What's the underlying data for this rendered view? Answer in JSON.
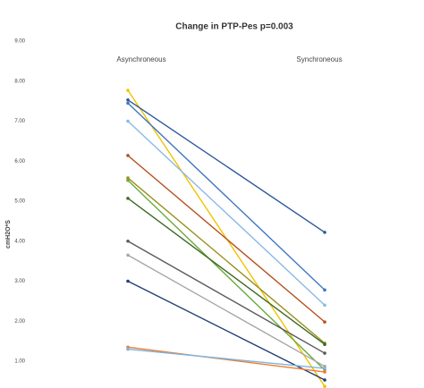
{
  "chart_data": {
    "type": "slope",
    "title": "Change in PTP-Pes    p=0.003",
    "y_label": "cmH2O*S",
    "categories": [
      "Asynchroneous",
      "Synchroneous"
    ],
    "ylim": [
      0,
      9
    ],
    "yticks": [
      {
        "value": 1,
        "label": "1.00"
      },
      {
        "value": 2,
        "label": "2.00"
      },
      {
        "value": 3,
        "label": "3.00"
      },
      {
        "value": 4,
        "label": "4.00"
      },
      {
        "value": 5,
        "label": "5.00"
      },
      {
        "value": 6,
        "label": "6.00"
      },
      {
        "value": 7,
        "label": "7.00"
      },
      {
        "value": 8,
        "label": "8.00"
      },
      {
        "value": 9,
        "label": "9.00"
      }
    ],
    "series": [
      {
        "color": "#f2c200",
        "values": [
          7.77,
          0.37
        ]
      },
      {
        "color": "#2e5a9c",
        "values": [
          7.53,
          4.22
        ]
      },
      {
        "color": "#3f78c0",
        "values": [
          7.45,
          2.78
        ]
      },
      {
        "color": "#8ab8e6",
        "values": [
          7.0,
          2.4
        ]
      },
      {
        "color": "#b5501c",
        "values": [
          6.14,
          1.98
        ]
      },
      {
        "color": "#9a9020",
        "values": [
          5.58,
          1.45
        ]
      },
      {
        "color": "#6aab3c",
        "values": [
          5.52,
          0.78
        ]
      },
      {
        "color": "#3e6a24",
        "values": [
          5.07,
          1.42
        ]
      },
      {
        "color": "#5a5a5a",
        "values": [
          4.0,
          1.2
        ]
      },
      {
        "color": "#a6a6a6",
        "values": [
          3.65,
          0.87
        ]
      },
      {
        "color": "#1f3f78",
        "values": [
          3.0,
          0.53
        ]
      },
      {
        "color": "#ed7d31",
        "values": [
          1.35,
          0.73
        ]
      },
      {
        "color": "#7fb3de",
        "values": [
          1.3,
          0.82
        ]
      }
    ]
  }
}
